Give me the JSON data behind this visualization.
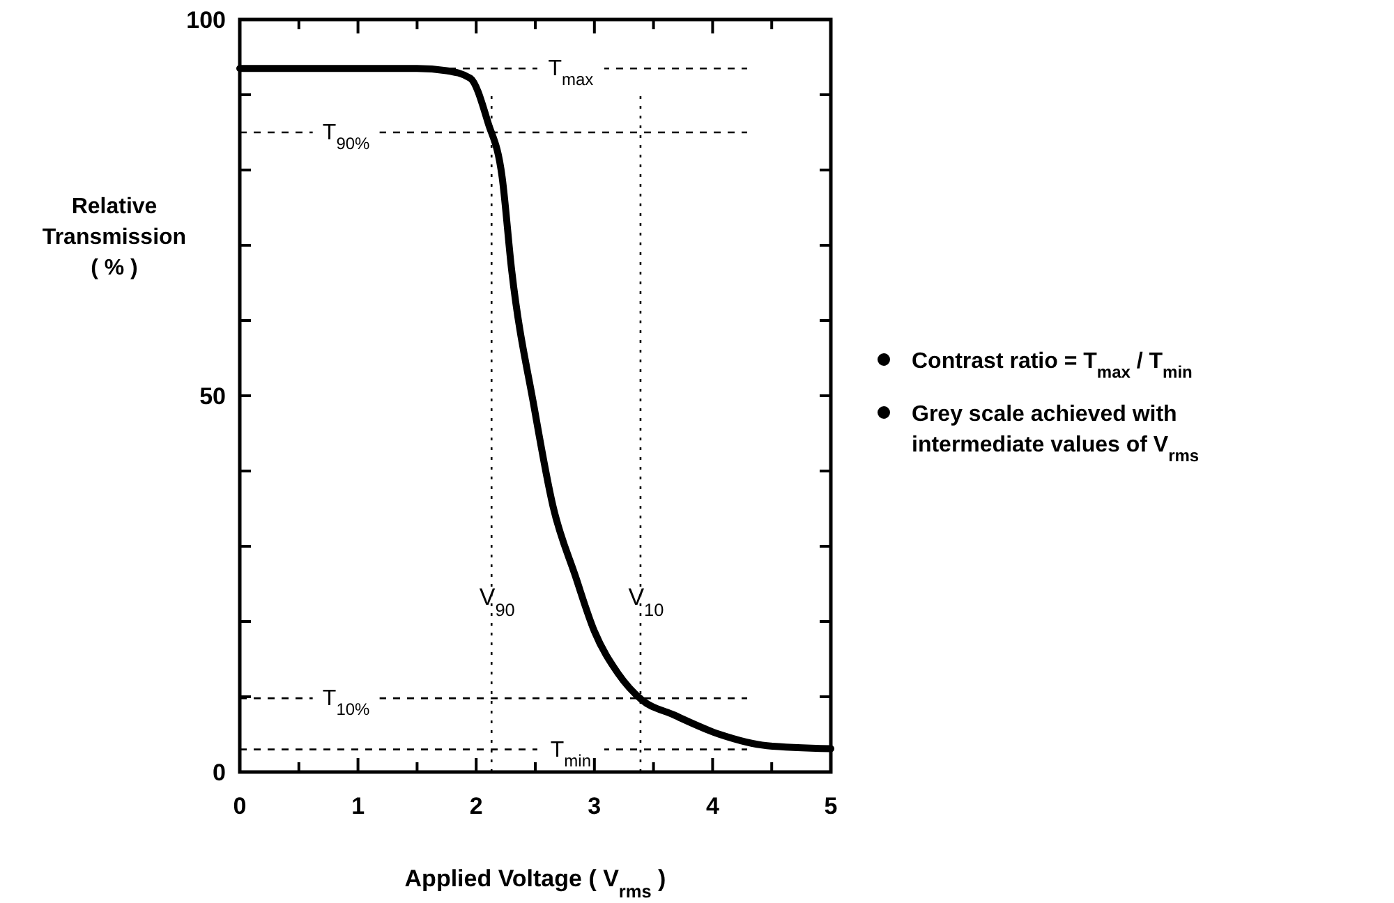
{
  "chart_data": {
    "type": "line",
    "xlabel": "Applied Voltage ( V$_{rms}$ )",
    "ylabel": "Relative Transmission ( % )",
    "xlim": [
      0,
      5
    ],
    "xticks": [
      0,
      {
        "value": 0.5,
        "label": null
      },
      1,
      {
        "value": 1.5,
        "label": null
      },
      2,
      {
        "value": 2.5,
        "label": null
      },
      3,
      {
        "value": 3.5,
        "label": null
      },
      4,
      {
        "value": 4.5,
        "label": null
      },
      5
    ],
    "ylim": [
      0,
      100
    ],
    "yticks": [
      0,
      {
        "value": 10,
        "label": null
      },
      {
        "value": 20,
        "label": null
      },
      {
        "value": 30,
        "label": null
      },
      {
        "value": 40,
        "label": null
      },
      50,
      {
        "value": 60,
        "label": null
      },
      {
        "value": 70,
        "label": null
      },
      {
        "value": 80,
        "label": null
      },
      {
        "value": 90,
        "label": null
      },
      100
    ],
    "series": [
      {
        "color": "#000000",
        "x": [
          0,
          0.5,
          1,
          1.5,
          1.75,
          1.95,
          2.1,
          2.22,
          2.3,
          2.49,
          2.65,
          2.84,
          3.0,
          3.2,
          3.4,
          3.67,
          4.06,
          4.46,
          5
        ],
        "values": [
          93.5,
          93.5,
          93.5,
          93.5,
          93.2,
          92.2,
          86.3,
          79,
          66.7,
          48.5,
          35.3,
          26,
          18.7,
          13.1,
          9.6,
          7.6,
          5.0,
          3.5,
          3.1
        ]
      }
    ],
    "ref_lines": [
      {
        "axis": "y",
        "value": 93.5,
        "label": "T$_{max}$",
        "line_style": "dashed"
      },
      {
        "axis": "y",
        "value": 85,
        "label": "T$_{90%}$",
        "line_style": "dashed"
      },
      {
        "axis": "y",
        "value": 3,
        "label": "T$_{min}$",
        "line_style": "dashed"
      },
      {
        "axis": "y",
        "value": 9.8,
        "label": "T$_{10%}$",
        "line_style": "dashed"
      },
      {
        "axis": "x",
        "value": 2.13,
        "label": "V$_{90}$",
        "line_style": "dotted"
      },
      {
        "axis": "x",
        "value": 3.39,
        "label": "V$_{10}$",
        "line_style": "dotted"
      }
    ],
    "annotations": [
      "Contrast ratio = T$_{max}$ / T$_{min}$",
      "Grey scale achieved with intermediate values of V$_{rms}$"
    ],
    "grid": false
  }
}
